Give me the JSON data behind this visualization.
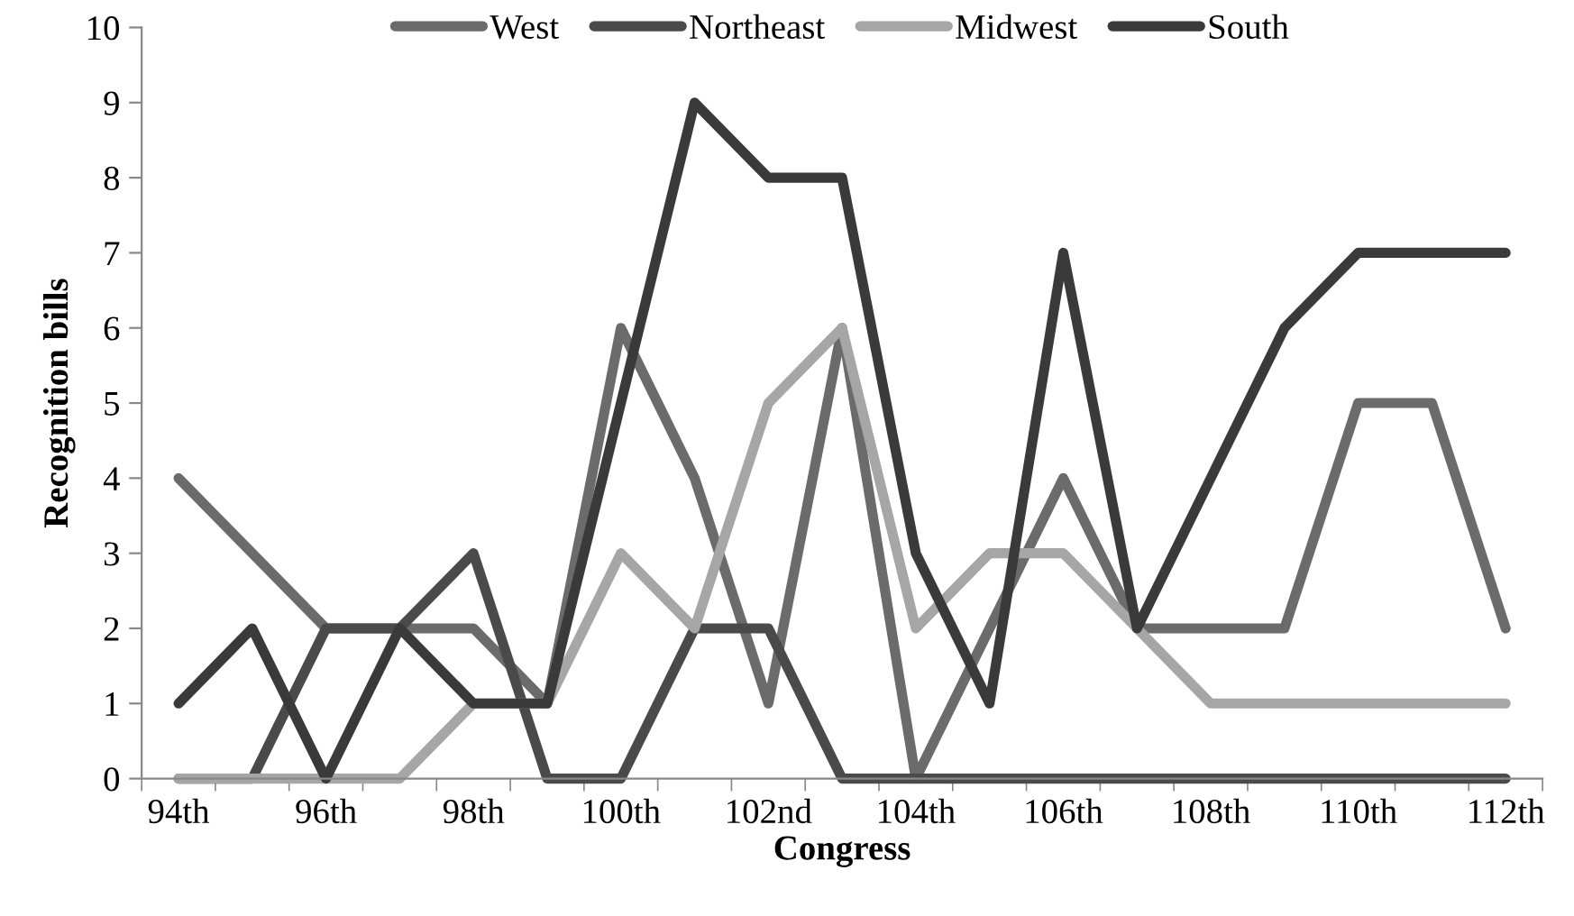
{
  "chart_data": {
    "type": "line",
    "xlabel": "Congress",
    "ylabel": "Recognition bills",
    "categories": [
      "94th",
      null,
      "96th",
      null,
      "98th",
      null,
      "100th",
      null,
      "102nd",
      null,
      "104th",
      null,
      "106th",
      null,
      "108th",
      null,
      "110th",
      null,
      "112th"
    ],
    "series": [
      {
        "name": "West",
        "color": "#6b6b6b",
        "values": [
          4,
          3,
          2,
          2,
          2,
          1,
          6,
          4,
          1,
          6,
          0,
          2,
          4,
          2,
          2,
          2,
          5,
          5,
          2
        ]
      },
      {
        "name": "Northeast",
        "color": "#4a4a4a",
        "values": [
          0,
          0,
          2,
          2,
          3,
          0,
          0,
          2,
          2,
          0,
          0,
          0,
          0,
          0,
          0,
          0,
          0,
          0,
          0
        ]
      },
      {
        "name": "Midwest",
        "color": "#a6a6a6",
        "values": [
          0,
          0,
          0,
          0,
          1,
          1,
          3,
          2,
          5,
          6,
          2,
          3,
          3,
          2,
          1,
          1,
          1,
          1,
          1
        ]
      },
      {
        "name": "South",
        "color": "#3a3a3a",
        "values": [
          1,
          2,
          0,
          2,
          1,
          1,
          5,
          9,
          8,
          8,
          3,
          1,
          7,
          2,
          4,
          6,
          7,
          7,
          7
        ]
      }
    ],
    "ylim": [
      0,
      10
    ],
    "yticks": [
      0,
      1,
      2,
      3,
      4,
      5,
      6,
      7,
      8,
      9,
      10
    ],
    "grid": false,
    "legend": "top",
    "marker": "none",
    "line_style": "solid"
  }
}
